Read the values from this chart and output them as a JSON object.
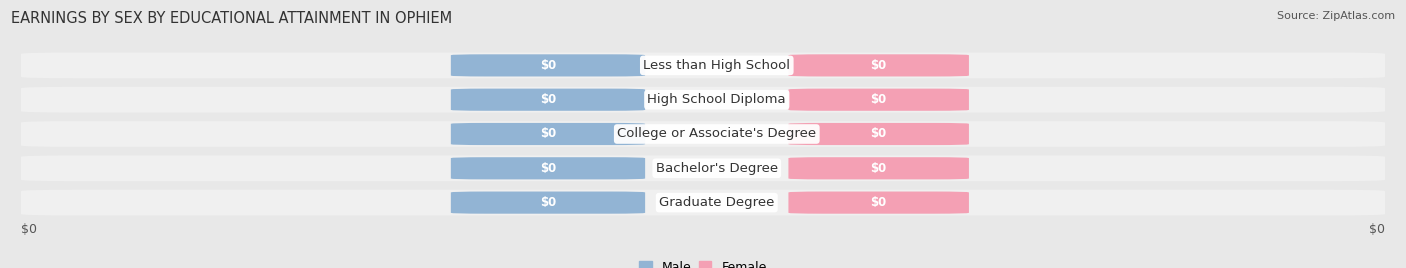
{
  "title": "EARNINGS BY SEX BY EDUCATIONAL ATTAINMENT IN OPHIEM",
  "source": "Source: ZipAtlas.com",
  "categories": [
    "Less than High School",
    "High School Diploma",
    "College or Associate's Degree",
    "Bachelor's Degree",
    "Graduate Degree"
  ],
  "male_values": [
    0,
    0,
    0,
    0,
    0
  ],
  "female_values": [
    0,
    0,
    0,
    0,
    0
  ],
  "male_color": "#92b4d4",
  "female_color": "#f4a0b4",
  "bar_label": "$0",
  "title_fontsize": 10.5,
  "cat_fontsize": 9.5,
  "bar_label_fontsize": 8.5,
  "tick_fontsize": 9,
  "source_fontsize": 8,
  "legend_fontsize": 9,
  "xlabel_left": "$0",
  "xlabel_right": "$0",
  "fig_bg": "#e8e8e8",
  "row_bg_light": "#f0f0f0",
  "row_bg_dark": "#e4e4e4"
}
